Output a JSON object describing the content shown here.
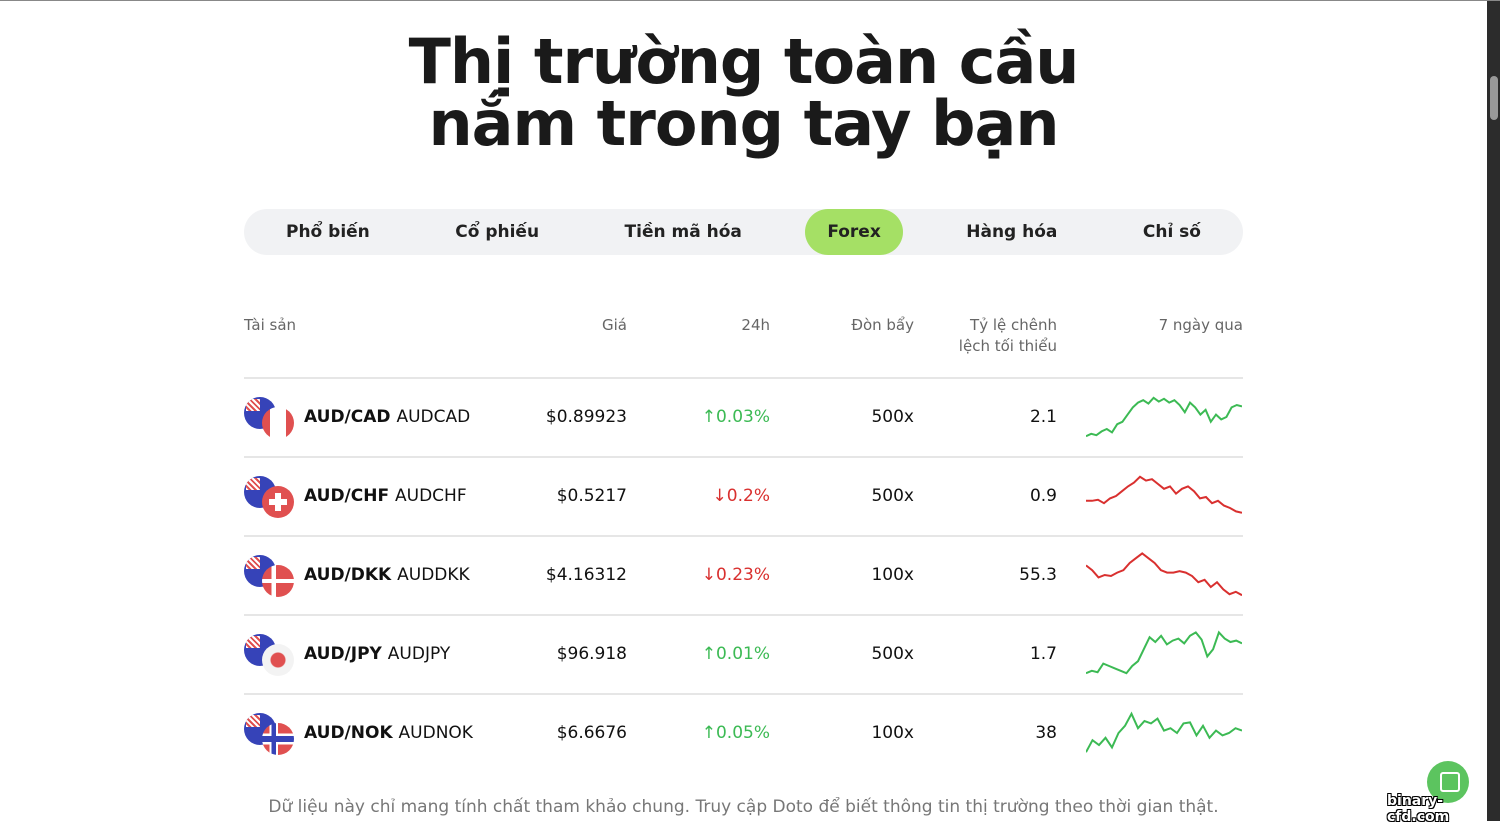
{
  "title": {
    "line1": "Thị trường toàn cầu",
    "line2": "nắm trong tay bạn"
  },
  "tabs": [
    {
      "label": "Phổ biến"
    },
    {
      "label": "Cổ phiếu"
    },
    {
      "label": "Tiền mã hóa"
    },
    {
      "label": "Forex",
      "active": true
    },
    {
      "label": "Hàng hóa"
    },
    {
      "label": "Chỉ số"
    }
  ],
  "columns": {
    "asset": "Tài sản",
    "price": "Giá",
    "change": "24h",
    "leverage": "Đòn bẩy",
    "spread_l1": "Tỷ lệ chênh",
    "spread_l2": "lệch tối thiểu",
    "chart": "7 ngày qua"
  },
  "colors": {
    "up": "#3cba54",
    "down": "#d9302f",
    "accent": "#a5e065"
  },
  "rows": [
    {
      "pair": "AUD/CAD",
      "symbol": "AUDCAD",
      "flag": "canada-flag",
      "price": "$0.89923",
      "change": "0.03%",
      "dir": "up",
      "leverage": "500x",
      "spread": "2.1",
      "spark": [
        10,
        15,
        12,
        20,
        25,
        18,
        35,
        40,
        55,
        70,
        80,
        85,
        78,
        90,
        82,
        88,
        80,
        85,
        75,
        60,
        80,
        70,
        55,
        65,
        40,
        55,
        45,
        50,
        70,
        75,
        72
      ]
    },
    {
      "pair": "AUD/CHF",
      "symbol": "AUDCHF",
      "flag": "switzerland-flag",
      "price": "$0.5217",
      "change": "0.2%",
      "dir": "down",
      "leverage": "500x",
      "spread": "0.9",
      "spark": [
        40,
        40,
        42,
        35,
        45,
        50,
        60,
        70,
        78,
        90,
        82,
        85,
        75,
        65,
        70,
        55,
        65,
        70,
        60,
        45,
        48,
        35,
        40,
        30,
        25,
        18,
        15
      ]
    },
    {
      "pair": "AUD/DKK",
      "symbol": "AUDDKK",
      "flag": "denmark-flag",
      "price": "$4.16312",
      "change": "0.23%",
      "dir": "down",
      "leverage": "100x",
      "spread": "55.3",
      "spark": [
        70,
        60,
        45,
        50,
        48,
        55,
        60,
        75,
        85,
        95,
        85,
        75,
        60,
        55,
        55,
        58,
        55,
        48,
        35,
        40,
        25,
        35,
        20,
        10,
        15,
        8
      ]
    },
    {
      "pair": "AUD/JPY",
      "symbol": "AUDJPY",
      "flag": "japan-flag",
      "price": "$96.918",
      "change": "0.01%",
      "dir": "up",
      "leverage": "500x",
      "spread": "1.7",
      "spark": [
        10,
        15,
        12,
        30,
        25,
        20,
        15,
        10,
        25,
        35,
        60,
        85,
        75,
        88,
        70,
        78,
        82,
        72,
        88,
        95,
        80,
        45,
        60,
        95,
        82,
        75,
        78,
        72
      ]
    },
    {
      "pair": "AUD/NOK",
      "symbol": "AUDNOK",
      "flag": "norway-flag",
      "price": "$6.6676",
      "change": "0.05%",
      "dir": "up",
      "leverage": "100x",
      "spread": "38",
      "spark": [
        10,
        35,
        25,
        40,
        20,
        50,
        65,
        90,
        60,
        75,
        70,
        80,
        55,
        60,
        50,
        70,
        72,
        45,
        65,
        40,
        55,
        45,
        50,
        60,
        55
      ]
    }
  ],
  "note": "Dữ liệu này chỉ mang tính chất tham khảo chung. Truy cập Doto để biết thông tin thị trường theo thời gian thật.",
  "watermark": "binary-cfd.com"
}
